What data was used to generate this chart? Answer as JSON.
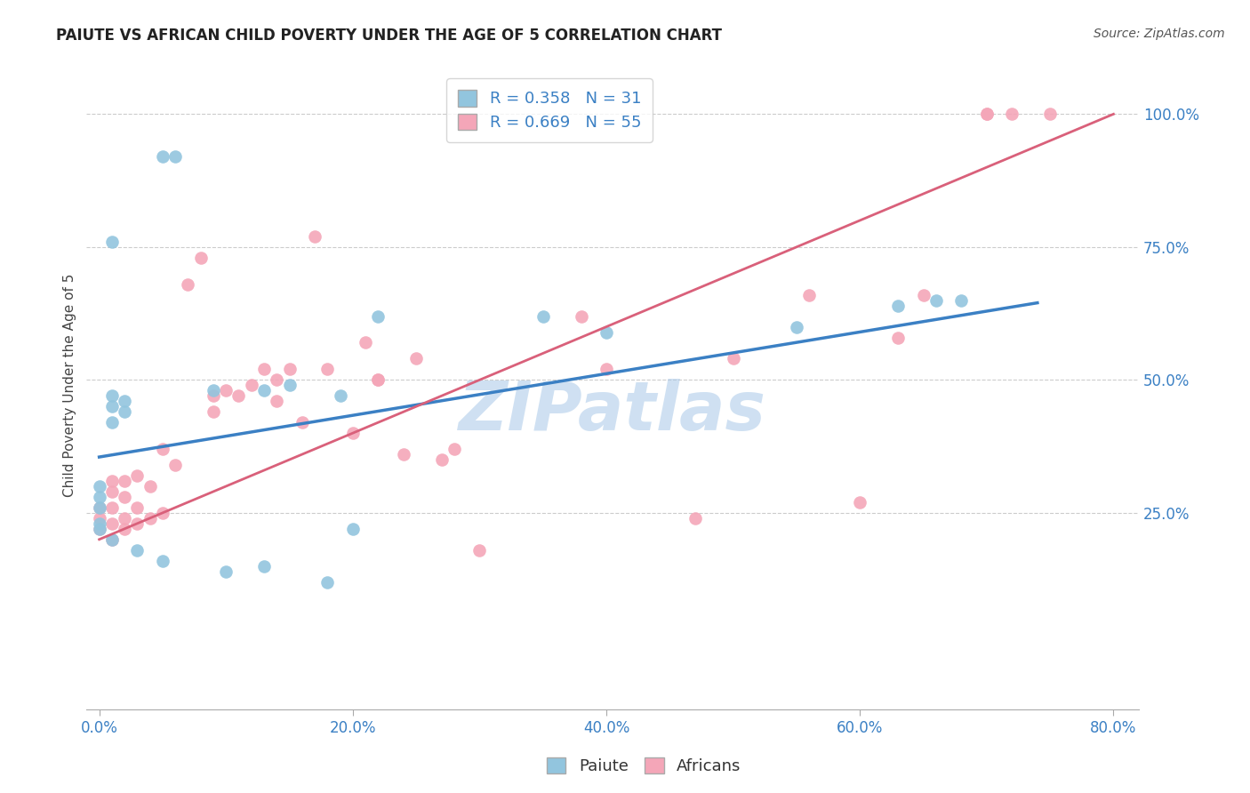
{
  "title": "PAIUTE VS AFRICAN CHILD POVERTY UNDER THE AGE OF 5 CORRELATION CHART",
  "source": "Source: ZipAtlas.com",
  "ylabel_label": "Child Poverty Under the Age of 5",
  "x_tick_labels": [
    "0.0%",
    "20.0%",
    "40.0%",
    "60.0%",
    "80.0%"
  ],
  "x_tick_values": [
    0.0,
    0.2,
    0.4,
    0.6,
    0.8
  ],
  "y_tick_labels": [
    "25.0%",
    "50.0%",
    "75.0%",
    "100.0%"
  ],
  "y_tick_values": [
    0.25,
    0.5,
    0.75,
    1.0
  ],
  "xlim": [
    -0.01,
    0.82
  ],
  "ylim": [
    -0.12,
    1.1
  ],
  "paiute_R": "0.358",
  "paiute_N": "31",
  "african_R": "0.669",
  "african_N": "55",
  "paiute_color": "#92c5de",
  "african_color": "#f4a6b8",
  "paiute_line_color": "#3b80c4",
  "african_line_color": "#d9607a",
  "watermark_text": "ZIPatlas",
  "paiute_x": [
    0.05,
    0.06,
    0.01,
    0.01,
    0.01,
    0.01,
    0.0,
    0.0,
    0.0,
    0.0,
    0.0,
    0.01,
    0.02,
    0.02,
    0.03,
    0.05,
    0.09,
    0.1,
    0.13,
    0.13,
    0.15,
    0.18,
    0.19,
    0.2,
    0.22,
    0.35,
    0.4,
    0.55,
    0.63,
    0.66,
    0.68
  ],
  "paiute_y": [
    0.92,
    0.92,
    0.76,
    0.47,
    0.45,
    0.42,
    0.3,
    0.28,
    0.26,
    0.23,
    0.22,
    0.2,
    0.46,
    0.44,
    0.18,
    0.16,
    0.48,
    0.14,
    0.48,
    0.15,
    0.49,
    0.12,
    0.47,
    0.22,
    0.62,
    0.62,
    0.59,
    0.6,
    0.64,
    0.65,
    0.65
  ],
  "african_x": [
    0.0,
    0.0,
    0.0,
    0.01,
    0.01,
    0.01,
    0.01,
    0.01,
    0.02,
    0.02,
    0.02,
    0.02,
    0.03,
    0.03,
    0.03,
    0.04,
    0.04,
    0.05,
    0.05,
    0.06,
    0.07,
    0.08,
    0.09,
    0.09,
    0.1,
    0.11,
    0.12,
    0.13,
    0.14,
    0.14,
    0.15,
    0.16,
    0.17,
    0.18,
    0.2,
    0.21,
    0.22,
    0.22,
    0.24,
    0.25,
    0.27,
    0.28,
    0.3,
    0.38,
    0.4,
    0.47,
    0.5,
    0.56,
    0.6,
    0.63,
    0.65,
    0.7,
    0.7,
    0.72,
    0.75
  ],
  "african_y": [
    0.22,
    0.24,
    0.26,
    0.2,
    0.23,
    0.26,
    0.29,
    0.31,
    0.22,
    0.24,
    0.28,
    0.31,
    0.23,
    0.26,
    0.32,
    0.24,
    0.3,
    0.25,
    0.37,
    0.34,
    0.68,
    0.73,
    0.44,
    0.47,
    0.48,
    0.47,
    0.49,
    0.52,
    0.46,
    0.5,
    0.52,
    0.42,
    0.77,
    0.52,
    0.4,
    0.57,
    0.5,
    0.5,
    0.36,
    0.54,
    0.35,
    0.37,
    0.18,
    0.62,
    0.52,
    0.24,
    0.54,
    0.66,
    0.27,
    0.58,
    0.66,
    1.0,
    1.0,
    1.0,
    1.0
  ],
  "paiute_line_x": [
    0.0,
    0.74
  ],
  "paiute_line_y": [
    0.355,
    0.645
  ],
  "african_line_x": [
    0.0,
    0.8
  ],
  "african_line_y": [
    0.2,
    1.0
  ]
}
